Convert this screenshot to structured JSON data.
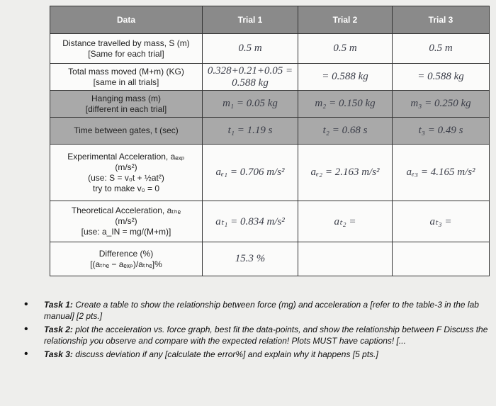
{
  "table": {
    "header": [
      "Data",
      "Trial 1",
      "Trial 2",
      "Trial 3"
    ],
    "rows": [
      {
        "label": [
          "Distance travelled by mass, S (m)",
          "[Same for each trial]"
        ],
        "cells": [
          "0.5 m",
          "0.5 m",
          "0.5 m"
        ],
        "shaded": false
      },
      {
        "label": [
          "Total mass moved (M+m) (KG)",
          "[same in all trials]"
        ],
        "cells": [
          "0.328+0.21+0.05 = 0.588 kg",
          "= 0.588 kg",
          "= 0.588 kg"
        ],
        "shaded": false
      },
      {
        "label": [
          "Hanging mass (m)",
          "[different in each trial]"
        ],
        "cells": [
          "m₁ = 0.05 kg",
          "m₂ = 0.150 kg",
          "m₃ = 0.250 kg"
        ],
        "shaded": true
      },
      {
        "label": [
          "Time between gates, t (sec)"
        ],
        "cells": [
          "t₁ = 1.19 s",
          "t₂ = 0.68 s",
          "t₃ = 0.49 s"
        ],
        "shaded": true
      },
      {
        "label": [
          "Experimental Acceleration, aₑₓₚ",
          "(m/s²)",
          "(use: S = v₀t + ½at²)",
          "try to make v₀ = 0"
        ],
        "cells": [
          "aₑ₁ = 0.706 m/s²",
          "aₑ₂ = 2.163 m/s²",
          "aₑ₃ = 4.165 m/s²"
        ],
        "shaded": false
      },
      {
        "label": [
          "Theoretical Acceleration, aₜₕₑ",
          "(m/s²)",
          "[use: a_IN = mg/(M+m)]"
        ],
        "cells": [
          "aₜ₁ = 0.834 m/s²",
          "aₜ₂ =",
          "aₜ₃ ="
        ],
        "shaded": false
      },
      {
        "label": [
          "Difference (%)",
          "[(aₜₕₑ − aₑₓₚ)/aₜₕₑ]%"
        ],
        "cells": [
          "15.3 %"
        ],
        "shaded": false
      }
    ]
  },
  "tasks": [
    {
      "label": "Task 1:",
      "text": "Create a table to show the relationship between force (mg) and acceleration a [refer to the table-3 in the lab manual] [2 pts.]"
    },
    {
      "label": "Task 2:",
      "text": "plot the acceleration vs. force graph, best fit the data-points, and show the relationship between F Discuss the relationship you observe and compare with the expected relation! Plots MUST have captions! [..."
    },
    {
      "label": "Task 3:",
      "text": "discuss deviation if any [calculate the error%] and explain why it happens [5 pts.]"
    }
  ]
}
